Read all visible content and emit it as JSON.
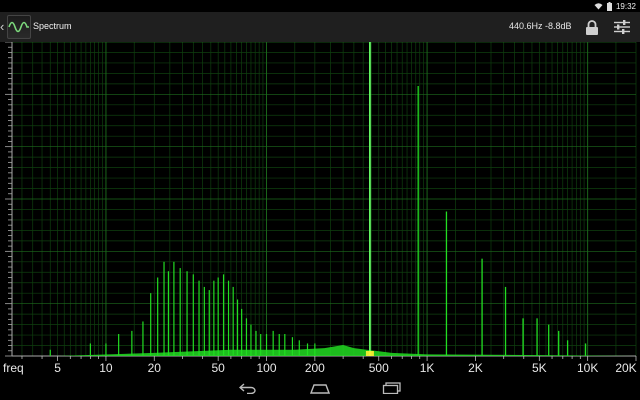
{
  "status_bar": {
    "time": "19:32",
    "icons": [
      "wifi-icon",
      "battery-icon"
    ]
  },
  "action_bar": {
    "title": "Spectrum",
    "cursor_readout": "440.6Hz  -8.8dB",
    "icons": [
      "app-waveform-icon",
      "lock-icon",
      "sliders-icon"
    ]
  },
  "x_axis": {
    "name": "freq",
    "ticks": [
      {
        "value": 5,
        "label": "5"
      },
      {
        "value": 10,
        "label": "10"
      },
      {
        "value": 20,
        "label": "20"
      },
      {
        "value": 50,
        "label": "50"
      },
      {
        "value": 100,
        "label": "100"
      },
      {
        "value": 200,
        "label": "200"
      },
      {
        "value": 500,
        "label": "500"
      },
      {
        "value": 1000,
        "label": "1K"
      },
      {
        "value": 2000,
        "label": "2K"
      },
      {
        "value": 5000,
        "label": "5K"
      },
      {
        "value": 10000,
        "label": "10K"
      },
      {
        "value": 20000,
        "label": "20K"
      }
    ]
  },
  "chart_data": {
    "type": "line",
    "xscale": "log",
    "xlim": [
      2.6,
      20000
    ],
    "ylim": [
      0,
      1
    ],
    "grid": true,
    "colors": {
      "spectrum": "#22dd22",
      "peak": "#66ff66",
      "grid_minor": "#0f3f0f",
      "grid_major": "#1c6a1c",
      "highlight": "#ffee33"
    },
    "peaks": [
      {
        "x": 440.6,
        "y": 1.0
      },
      {
        "x": 880,
        "y": 0.86
      },
      {
        "x": 1320,
        "y": 0.46
      },
      {
        "x": 2200,
        "y": 0.31
      },
      {
        "x": 3080,
        "y": 0.22
      },
      {
        "x": 3960,
        "y": 0.12
      },
      {
        "x": 4840,
        "y": 0.12
      },
      {
        "x": 5720,
        "y": 0.1
      },
      {
        "x": 6600,
        "y": 0.08
      },
      {
        "x": 7500,
        "y": 0.05
      },
      {
        "x": 9700,
        "y": 0.04
      }
    ],
    "lowfreq_peaks": [
      {
        "x": 4.5,
        "y": 0.02
      },
      {
        "x": 8.0,
        "y": 0.04
      },
      {
        "x": 10.0,
        "y": 0.04
      },
      {
        "x": 12.0,
        "y": 0.07
      },
      {
        "x": 14.5,
        "y": 0.08
      },
      {
        "x": 17.0,
        "y": 0.11
      },
      {
        "x": 19.0,
        "y": 0.2
      },
      {
        "x": 21.0,
        "y": 0.25
      },
      {
        "x": 23.0,
        "y": 0.3
      },
      {
        "x": 24.5,
        "y": 0.27
      },
      {
        "x": 26.5,
        "y": 0.3
      },
      {
        "x": 29.0,
        "y": 0.28
      },
      {
        "x": 32.0,
        "y": 0.27
      },
      {
        "x": 35.0,
        "y": 0.26
      },
      {
        "x": 38.0,
        "y": 0.24
      },
      {
        "x": 41.0,
        "y": 0.22
      },
      {
        "x": 44.0,
        "y": 0.21
      },
      {
        "x": 47.0,
        "y": 0.24
      },
      {
        "x": 50.0,
        "y": 0.25
      },
      {
        "x": 54.0,
        "y": 0.26
      },
      {
        "x": 58.0,
        "y": 0.24
      },
      {
        "x": 62.0,
        "y": 0.22
      },
      {
        "x": 66.0,
        "y": 0.18
      },
      {
        "x": 70.0,
        "y": 0.15
      },
      {
        "x": 75.0,
        "y": 0.12
      },
      {
        "x": 80.0,
        "y": 0.1
      },
      {
        "x": 86.0,
        "y": 0.08
      },
      {
        "x": 92.0,
        "y": 0.07
      },
      {
        "x": 100.0,
        "y": 0.07
      },
      {
        "x": 110.0,
        "y": 0.08
      },
      {
        "x": 120.0,
        "y": 0.07
      },
      {
        "x": 130.0,
        "y": 0.07
      },
      {
        "x": 145.0,
        "y": 0.06
      },
      {
        "x": 160.0,
        "y": 0.05
      },
      {
        "x": 180.0,
        "y": 0.04
      },
      {
        "x": 200.0,
        "y": 0.04
      }
    ],
    "floor": [
      {
        "x": 2.6,
        "y": 0.0
      },
      {
        "x": 5,
        "y": 0.0
      },
      {
        "x": 20,
        "y": 0.01
      },
      {
        "x": 60,
        "y": 0.02
      },
      {
        "x": 150,
        "y": 0.02
      },
      {
        "x": 230,
        "y": 0.025
      },
      {
        "x": 300,
        "y": 0.035
      },
      {
        "x": 350,
        "y": 0.025
      },
      {
        "x": 420,
        "y": 0.02
      },
      {
        "x": 600,
        "y": 0.01
      },
      {
        "x": 1000,
        "y": 0.005
      },
      {
        "x": 5000,
        "y": 0.003
      },
      {
        "x": 20000,
        "y": 0.0
      }
    ]
  },
  "nav_bar": {
    "icons": [
      "back-icon",
      "home-icon",
      "recents-icon"
    ]
  }
}
